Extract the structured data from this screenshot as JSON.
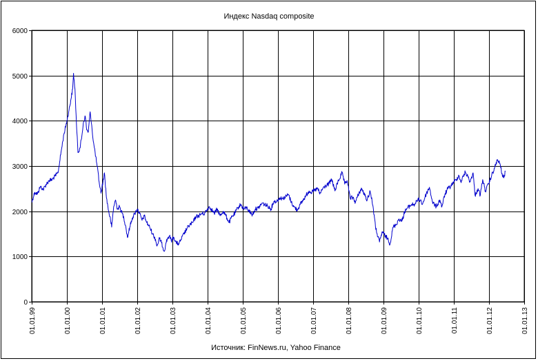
{
  "chart_data": {
    "type": "line",
    "title": "Индекс Nasdaq composite",
    "source_note": "Источник: FinNews.ru, Yahoo Finance",
    "xlabel": "",
    "ylabel": "",
    "ylim": [
      0,
      6000
    ],
    "yticks": [
      0,
      1000,
      2000,
      3000,
      4000,
      5000,
      6000
    ],
    "xlim": [
      "1999-01-01",
      "2013-01-01"
    ],
    "xtick_labels": [
      "01.01.99",
      "01.01.00",
      "01.01.01",
      "01.01.02",
      "01.01.03",
      "01.01.04",
      "01.01.05",
      "01.01.06",
      "01.01.07",
      "01.01.08",
      "01.01.09",
      "01.01.10",
      "01.01.11",
      "01.01.12",
      "01.01.13"
    ],
    "grid": true,
    "series": [
      {
        "color": "#0000cc",
        "points": [
          [
            "1999-01-01",
            2200
          ],
          [
            "1999-02-01",
            2420
          ],
          [
            "1999-03-01",
            2380
          ],
          [
            "1999-04-01",
            2550
          ],
          [
            "1999-05-01",
            2480
          ],
          [
            "1999-06-01",
            2600
          ],
          [
            "1999-07-01",
            2680
          ],
          [
            "1999-08-01",
            2700
          ],
          [
            "1999-09-01",
            2780
          ],
          [
            "1999-10-01",
            2850
          ],
          [
            "1999-11-01",
            3300
          ],
          [
            "1999-12-01",
            3700
          ],
          [
            "2000-01-01",
            4000
          ],
          [
            "2000-01-20",
            4200
          ],
          [
            "2000-02-10",
            4450
          ],
          [
            "2000-03-01",
            4700
          ],
          [
            "2000-03-10",
            5050
          ],
          [
            "2000-03-25",
            4700
          ],
          [
            "2000-04-10",
            3900
          ],
          [
            "2000-04-25",
            3300
          ],
          [
            "2000-05-15",
            3400
          ],
          [
            "2000-06-01",
            3600
          ],
          [
            "2000-06-20",
            3950
          ],
          [
            "2000-07-10",
            4100
          ],
          [
            "2000-07-25",
            3800
          ],
          [
            "2000-08-10",
            3750
          ],
          [
            "2000-08-30",
            4200
          ],
          [
            "2000-09-15",
            3900
          ],
          [
            "2000-10-01",
            3550
          ],
          [
            "2000-10-20",
            3300
          ],
          [
            "2000-11-10",
            3000
          ],
          [
            "2000-12-01",
            2650
          ],
          [
            "2000-12-20",
            2400
          ],
          [
            "2001-01-10",
            2650
          ],
          [
            "2001-01-25",
            2850
          ],
          [
            "2001-02-15",
            2300
          ],
          [
            "2001-03-10",
            2000
          ],
          [
            "2001-03-30",
            1800
          ],
          [
            "2001-04-10",
            1650
          ],
          [
            "2001-05-01",
            2100
          ],
          [
            "2001-05-20",
            2250
          ],
          [
            "2001-06-10",
            2050
          ],
          [
            "2001-07-01",
            2100
          ],
          [
            "2001-07-20",
            2000
          ],
          [
            "2001-08-15",
            1850
          ],
          [
            "2001-09-05",
            1650
          ],
          [
            "2001-09-21",
            1420
          ],
          [
            "2001-10-15",
            1650
          ],
          [
            "2001-11-10",
            1850
          ],
          [
            "2001-12-05",
            1950
          ],
          [
            "2002-01-01",
            2050
          ],
          [
            "2002-01-25",
            1950
          ],
          [
            "2002-02-20",
            1800
          ],
          [
            "2002-03-15",
            1900
          ],
          [
            "2002-04-10",
            1750
          ],
          [
            "2002-05-10",
            1650
          ],
          [
            "2002-06-10",
            1500
          ],
          [
            "2002-07-10",
            1380
          ],
          [
            "2002-07-24",
            1230
          ],
          [
            "2002-08-20",
            1400
          ],
          [
            "2002-09-10",
            1300
          ],
          [
            "2002-10-09",
            1114
          ],
          [
            "2002-10-25",
            1300
          ],
          [
            "2002-11-15",
            1420
          ],
          [
            "2002-12-01",
            1450
          ],
          [
            "2002-12-20",
            1350
          ],
          [
            "2003-01-15",
            1430
          ],
          [
            "2003-02-10",
            1300
          ],
          [
            "2003-03-10",
            1280
          ],
          [
            "2003-04-01",
            1380
          ],
          [
            "2003-05-01",
            1500
          ],
          [
            "2003-06-01",
            1620
          ],
          [
            "2003-07-01",
            1700
          ],
          [
            "2003-08-01",
            1750
          ],
          [
            "2003-09-01",
            1880
          ],
          [
            "2003-10-01",
            1900
          ],
          [
            "2003-11-01",
            1950
          ],
          [
            "2003-12-01",
            1950
          ],
          [
            "2004-01-15",
            2100
          ],
          [
            "2004-02-10",
            2050
          ],
          [
            "2004-03-10",
            1950
          ],
          [
            "2004-04-10",
            2050
          ],
          [
            "2004-05-10",
            1900
          ],
          [
            "2004-06-10",
            2000
          ],
          [
            "2004-07-10",
            1900
          ],
          [
            "2004-08-12",
            1750
          ],
          [
            "2004-09-10",
            1880
          ],
          [
            "2004-10-10",
            1950
          ],
          [
            "2004-11-10",
            2080
          ],
          [
            "2004-12-10",
            2150
          ],
          [
            "2005-01-10",
            2050
          ],
          [
            "2005-02-10",
            2080
          ],
          [
            "2005-03-10",
            2000
          ],
          [
            "2005-04-10",
            1920
          ],
          [
            "2005-05-10",
            2050
          ],
          [
            "2005-06-10",
            2070
          ],
          [
            "2005-07-20",
            2180
          ],
          [
            "2005-08-15",
            2150
          ],
          [
            "2005-09-15",
            2120
          ],
          [
            "2005-10-20",
            2050
          ],
          [
            "2005-11-20",
            2220
          ],
          [
            "2005-12-20",
            2220
          ],
          [
            "2006-01-20",
            2300
          ],
          [
            "2006-02-20",
            2280
          ],
          [
            "2006-03-20",
            2320
          ],
          [
            "2006-04-20",
            2370
          ],
          [
            "2006-05-20",
            2200
          ],
          [
            "2006-06-15",
            2100
          ],
          [
            "2006-07-20",
            2030
          ],
          [
            "2006-08-20",
            2150
          ],
          [
            "2006-09-20",
            2250
          ],
          [
            "2006-10-20",
            2350
          ],
          [
            "2006-11-20",
            2450
          ],
          [
            "2006-12-20",
            2420
          ],
          [
            "2007-01-20",
            2470
          ],
          [
            "2007-02-20",
            2500
          ],
          [
            "2007-03-10",
            2380
          ],
          [
            "2007-04-10",
            2500
          ],
          [
            "2007-05-10",
            2560
          ],
          [
            "2007-06-10",
            2600
          ],
          [
            "2007-07-15",
            2700
          ],
          [
            "2007-08-15",
            2450
          ],
          [
            "2007-09-15",
            2650
          ],
          [
            "2007-10-30",
            2850
          ],
          [
            "2007-11-25",
            2600
          ],
          [
            "2007-12-20",
            2680
          ],
          [
            "2008-01-20",
            2300
          ],
          [
            "2008-02-20",
            2300
          ],
          [
            "2008-03-15",
            2200
          ],
          [
            "2008-04-20",
            2400
          ],
          [
            "2008-05-20",
            2500
          ],
          [
            "2008-06-20",
            2350
          ],
          [
            "2008-07-15",
            2250
          ],
          [
            "2008-08-15",
            2450
          ],
          [
            "2008-09-15",
            2100
          ],
          [
            "2008-10-10",
            1650
          ],
          [
            "2008-10-27",
            1500
          ],
          [
            "2008-11-20",
            1320
          ],
          [
            "2008-12-20",
            1550
          ],
          [
            "2009-01-20",
            1450
          ],
          [
            "2009-02-20",
            1380
          ],
          [
            "2009-03-09",
            1270
          ],
          [
            "2009-04-10",
            1650
          ],
          [
            "2009-05-10",
            1700
          ],
          [
            "2009-06-10",
            1830
          ],
          [
            "2009-07-10",
            1780
          ],
          [
            "2009-08-10",
            2000
          ],
          [
            "2009-09-10",
            2080
          ],
          [
            "2009-10-20",
            2150
          ],
          [
            "2009-11-20",
            2150
          ],
          [
            "2009-12-20",
            2250
          ],
          [
            "2010-01-20",
            2250
          ],
          [
            "2010-02-08",
            2150
          ],
          [
            "2010-03-20",
            2380
          ],
          [
            "2010-04-23",
            2530
          ],
          [
            "2010-05-25",
            2200
          ],
          [
            "2010-07-02",
            2100
          ],
          [
            "2010-08-10",
            2250
          ],
          [
            "2010-08-30",
            2100
          ],
          [
            "2010-09-30",
            2370
          ],
          [
            "2010-10-30",
            2500
          ],
          [
            "2010-11-30",
            2550
          ],
          [
            "2010-12-30",
            2650
          ],
          [
            "2011-01-30",
            2700
          ],
          [
            "2011-02-20",
            2800
          ],
          [
            "2011-03-15",
            2650
          ],
          [
            "2011-04-30",
            2870
          ],
          [
            "2011-05-30",
            2750
          ],
          [
            "2011-06-20",
            2650
          ],
          [
            "2011-07-20",
            2850
          ],
          [
            "2011-08-10",
            2350
          ],
          [
            "2011-09-10",
            2500
          ],
          [
            "2011-10-03",
            2350
          ],
          [
            "2011-10-28",
            2700
          ],
          [
            "2011-11-25",
            2450
          ],
          [
            "2011-12-30",
            2610
          ],
          [
            "2012-01-30",
            2800
          ],
          [
            "2012-02-28",
            2950
          ],
          [
            "2012-03-26",
            3130
          ],
          [
            "2012-04-25",
            3050
          ],
          [
            "2012-05-20",
            2780
          ],
          [
            "2012-06-04",
            2740
          ],
          [
            "2012-06-20",
            2880
          ]
        ]
      }
    ]
  }
}
